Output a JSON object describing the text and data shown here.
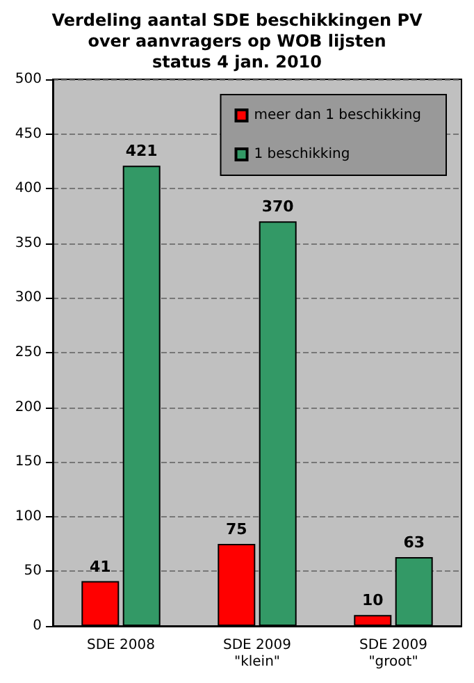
{
  "chart_data": {
    "type": "bar",
    "title": "Verdeling aantal SDE beschikkingen PV\nover aanvragers op WOB lijsten\nstatus 4 jan. 2010",
    "categories": [
      "SDE 2008",
      "SDE 2009\n\"klein\"",
      "SDE 2009\n\"groot\""
    ],
    "series": [
      {
        "name": "meer dan 1 beschikking",
        "color": "#ff0000",
        "values": [
          41,
          75,
          10
        ]
      },
      {
        "name": "1 beschikking",
        "color": "#339966",
        "values": [
          421,
          370,
          63
        ]
      }
    ],
    "ylim": [
      0,
      500
    ],
    "yticks": [
      0,
      50,
      100,
      150,
      200,
      250,
      300,
      350,
      400,
      450,
      500
    ],
    "grid": "y",
    "legend": "top right",
    "data_labels": true
  }
}
